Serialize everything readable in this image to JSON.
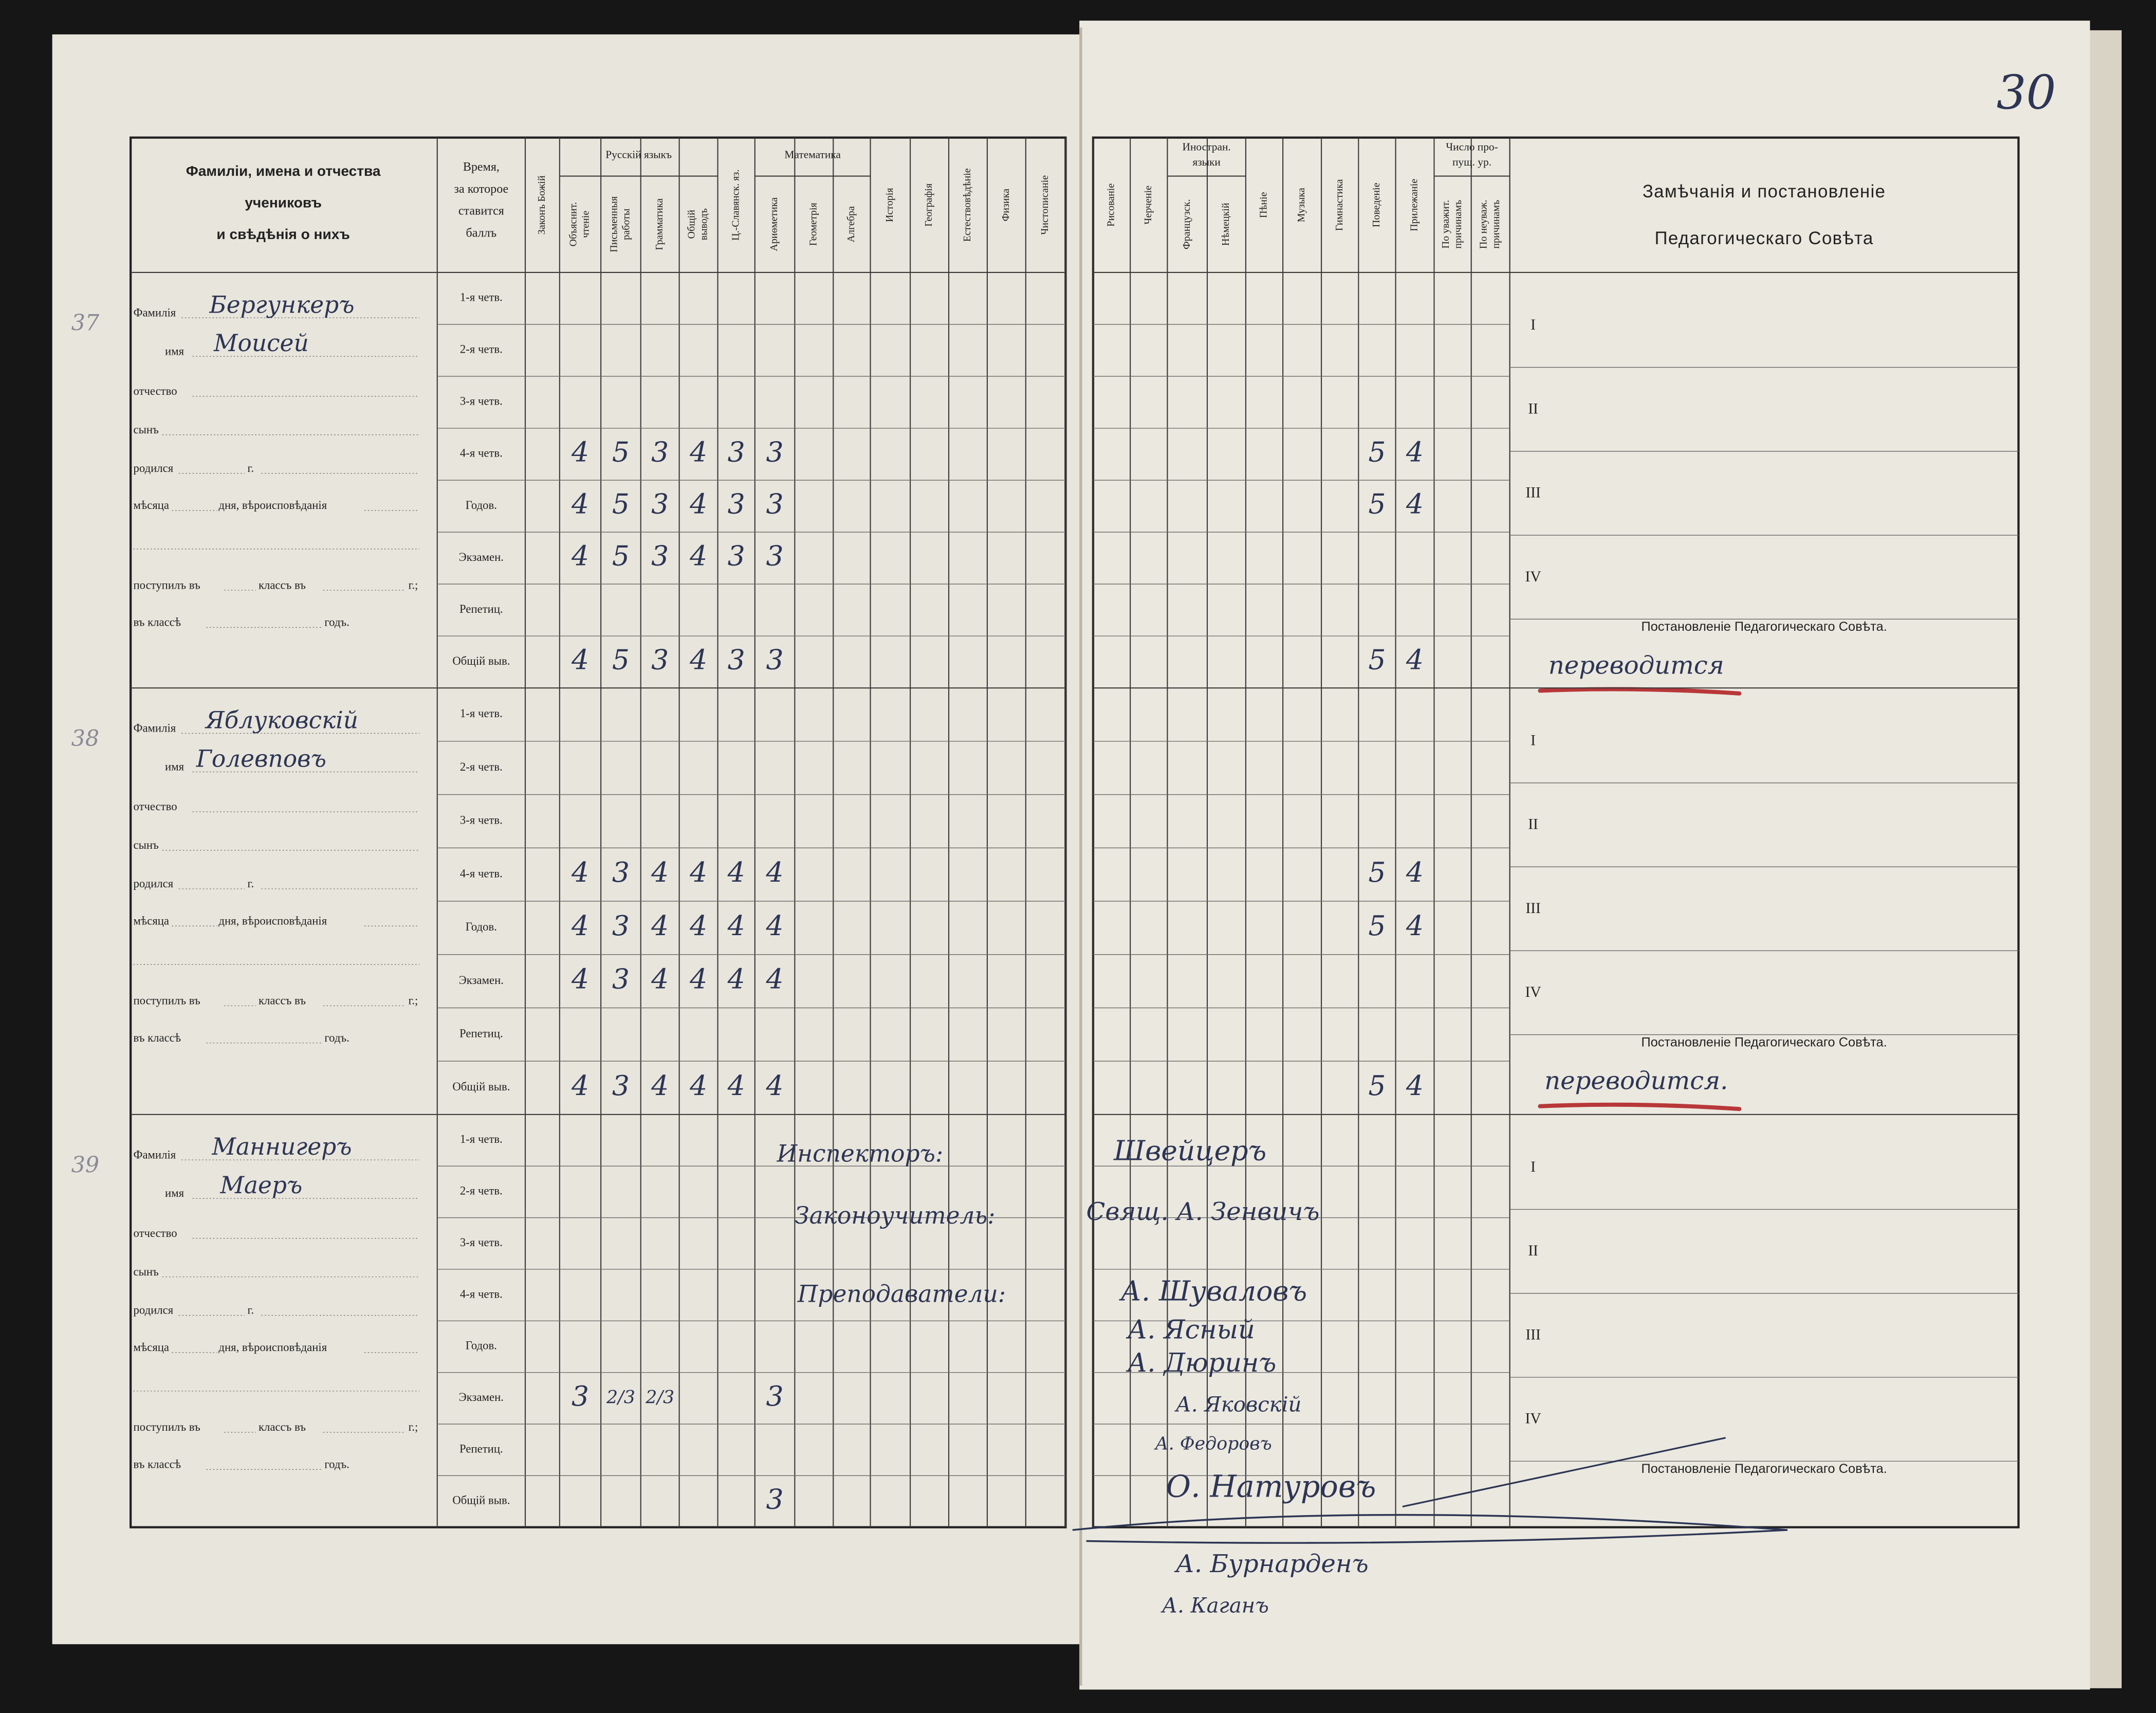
{
  "page_number": "30",
  "header": {
    "name_col": [
      "Фамиліи, имена и отчества",
      "учениковъ",
      "и свѣдѣнія о нихъ"
    ],
    "time_col": [
      "Время,",
      "за которое",
      "ставится",
      "баллъ"
    ],
    "left_columns": [
      {
        "label": [
          "Законъ Божій"
        ]
      },
      {
        "label": [
          "Русскій языкъ"
        ],
        "columns": [
          {
            "label": [
              "Объяснит.",
              "чтеніе"
            ]
          },
          {
            "label": [
              "Письменныя",
              "работы"
            ]
          },
          {
            "label": [
              "Грамматика"
            ]
          },
          {
            "label": [
              "Общій",
              "выводъ"
            ]
          }
        ]
      },
      {
        "label": [
          "Ц.-Славянск. яз."
        ]
      },
      {
        "label": [
          "Математика"
        ],
        "columns": [
          {
            "label": [
              "Ариѳметика"
            ]
          },
          {
            "label": [
              "Геометрія"
            ]
          },
          {
            "label": [
              "Алгебра"
            ]
          }
        ]
      },
      {
        "label": [
          "Исторія"
        ]
      },
      {
        "label": [
          "Географія"
        ]
      },
      {
        "label": [
          "Естествовѣдѣніе"
        ]
      },
      {
        "label": [
          "Физика"
        ]
      },
      {
        "label": [
          "Чистописаніе"
        ]
      }
    ],
    "right_columns": [
      {
        "label": [
          "Рисованіе"
        ]
      },
      {
        "label": [
          "Черченіе"
        ]
      },
      {
        "label": [
          "Иностран.",
          "языки"
        ],
        "columns": [
          {
            "label": [
              "Французск."
            ]
          },
          {
            "label": [
              "Нѣмецкій"
            ]
          }
        ]
      },
      {
        "label": [
          "Пѣніе"
        ]
      },
      {
        "label": [
          "Музыка"
        ]
      },
      {
        "label": [
          "Гимнастика"
        ]
      },
      {
        "label": [
          "Поведеніе"
        ]
      },
      {
        "label": [
          "Прилежаніе"
        ]
      },
      {
        "label": [
          "Число про-",
          "пущ. ур."
        ],
        "columns": [
          {
            "label": [
              "По уважит.",
              "причинамъ"
            ]
          },
          {
            "label": [
              "По неуваж.",
              "причинамъ"
            ]
          }
        ]
      }
    ],
    "remarks": [
      "Замѣчанія и постановленіе",
      "Педагогическаго Совѣта"
    ]
  },
  "students": [
    {
      "number": "37",
      "form": {
        "surname_label": "Фамилія",
        "surname": "Бергункеръ",
        "name_label": "имя",
        "name": "Моисей",
        "patronymic_label": "отчество",
        "son_label": "сынъ",
        "born_label": "родился",
        "year_label": "г.",
        "month_label": "мѣсяца",
        "day_label": "дня, вѣроисповѣданія",
        "admitted_label": "поступилъ въ",
        "class_label": "классъ въ",
        "year2_label": "г.;",
        "in_class_label": "въ классѣ",
        "year3_label": "годъ."
      },
      "rows": [
        {
          "period": "1-я четв."
        },
        {
          "period": "2-я четв."
        },
        {
          "period": "3-я четв."
        },
        {
          "period": "4-я четв.",
          "left": [
            null,
            4,
            5,
            3,
            4,
            3,
            3
          ],
          "right": [
            null,
            null,
            null,
            null,
            null,
            null,
            null,
            5,
            4
          ]
        },
        {
          "period": "Годов.",
          "left": [
            null,
            4,
            5,
            3,
            4,
            3,
            3
          ],
          "right": [
            null,
            null,
            null,
            null,
            null,
            null,
            null,
            5,
            4
          ]
        },
        {
          "period": "Экзамен.",
          "left": [
            null,
            4,
            5,
            3,
            4,
            3,
            3
          ]
        },
        {
          "period": "Репетиц."
        },
        {
          "period": "Общій выв.",
          "left": [
            null,
            4,
            5,
            3,
            4,
            3,
            3
          ],
          "right": [
            null,
            null,
            null,
            null,
            null,
            null,
            null,
            5,
            4
          ]
        }
      ],
      "remarks": {
        "quarters": [
          "I",
          "II",
          "III",
          "IV"
        ],
        "resolution_label": "Постановленіе Педагогическаго Совѣта.",
        "resolution": "переводится"
      }
    },
    {
      "number": "38",
      "form": {
        "surname_label": "Фамилія",
        "surname": "Яблуковскій",
        "name_label": "имя",
        "name": "Голевповъ",
        "patronymic_label": "отчество",
        "son_label": "сынъ",
        "born_label": "родился",
        "year_label": "г.",
        "month_label": "мѣсяца",
        "day_label": "дня, вѣроисповѣданія",
        "admitted_label": "поступилъ въ",
        "class_label": "классъ въ",
        "year2_label": "г.;",
        "in_class_label": "въ классѣ",
        "year3_label": "годъ."
      },
      "rows": [
        {
          "period": "1-я четв."
        },
        {
          "period": "2-я четв."
        },
        {
          "period": "3-я четв."
        },
        {
          "period": "4-я четв.",
          "left": [
            null,
            4,
            3,
            4,
            4,
            4,
            4
          ],
          "right": [
            null,
            null,
            null,
            null,
            null,
            null,
            null,
            5,
            4
          ]
        },
        {
          "period": "Годов.",
          "left": [
            null,
            4,
            3,
            4,
            4,
            4,
            4
          ],
          "right": [
            null,
            null,
            null,
            null,
            null,
            null,
            null,
            5,
            4
          ]
        },
        {
          "period": "Экзамен.",
          "left": [
            null,
            4,
            3,
            4,
            4,
            4,
            4
          ]
        },
        {
          "period": "Репетиц."
        },
        {
          "period": "Общій выв.",
          "left": [
            null,
            4,
            3,
            4,
            4,
            4,
            4
          ],
          "right": [
            null,
            null,
            null,
            null,
            null,
            null,
            null,
            5,
            4
          ]
        }
      ],
      "remarks": {
        "quarters": [
          "I",
          "II",
          "III",
          "IV"
        ],
        "resolution_label": "Постановленіе Педагогическаго Совѣта.",
        "resolution": "переводится."
      }
    },
    {
      "number": "39",
      "form": {
        "surname_label": "Фамилія",
        "surname": "Маннигеръ",
        "name_label": "имя",
        "name": "Маеръ",
        "patronymic_label": "отчество",
        "son_label": "сынъ",
        "born_label": "родился",
        "year_label": "г.",
        "month_label": "мѣсяца",
        "day_label": "дня, вѣроисповѣданія",
        "admitted_label": "поступилъ въ",
        "class_label": "классъ въ",
        "year2_label": "г.;",
        "in_class_label": "въ классѣ",
        "year3_label": "годъ."
      },
      "rows": [
        {
          "period": "1-я четв."
        },
        {
          "period": "2-я четв."
        },
        {
          "period": "3-я четв."
        },
        {
          "period": "4-я четв."
        },
        {
          "period": "Годов."
        },
        {
          "period": "Экзамен.",
          "left": [
            null,
            3,
            "2/3",
            "2/3",
            null,
            null,
            3
          ]
        },
        {
          "period": "Репетиц."
        },
        {
          "period": "Общій выв.",
          "left": [
            null,
            null,
            null,
            null,
            null,
            null,
            3
          ]
        }
      ],
      "remarks": {
        "quarters": [
          "I",
          "II",
          "III",
          "IV"
        ],
        "resolution_label": "Постановленіе Педагогическаго Совѣта."
      }
    }
  ],
  "signatures": {
    "inspector_label": "Инспекторъ:",
    "inspector": "Швейцеръ",
    "chaplain_label": "Законоучитель:",
    "chaplain": "Свящ. А. Зенвичъ",
    "teachers_label": "Преподаватели:",
    "teachers": [
      "А. Шуваловъ",
      "А. Ясный",
      "А. Дюринъ",
      "А. Яковскій",
      "А. Федоровъ",
      "О. Натуровъ",
      "А. Бурнарденъ",
      "А. Каганъ"
    ]
  }
}
